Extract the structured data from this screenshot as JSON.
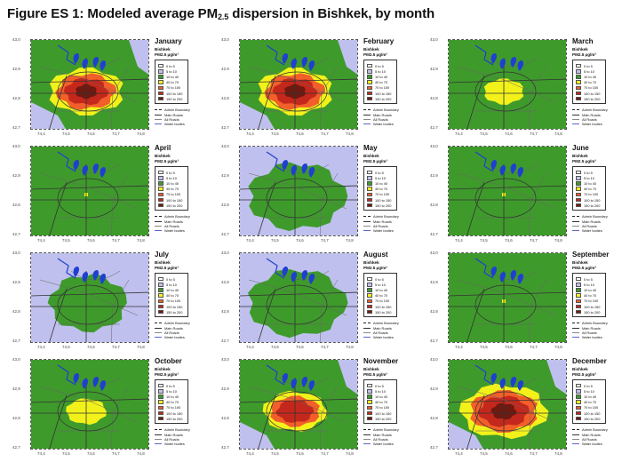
{
  "figure": {
    "title_prefix": "Figure ES 1: Modeled average PM",
    "title_sub": "2.5",
    "title_suffix": " dispersion in Bishkek, by month"
  },
  "axes": {
    "y_ticks": [
      "43,0",
      "42,9",
      "42,8",
      "42,7"
    ],
    "x_ticks": [
      "74,4",
      "74,5",
      "74,6",
      "74,7",
      "74,8"
    ]
  },
  "legend": {
    "city": "Bishkek",
    "classes": [
      {
        "label": "0 to 5",
        "color": "#ffffff"
      },
      {
        "label": "5 to 10",
        "color": "#bfc0ee"
      },
      {
        "label": "10 to 40",
        "color": "#3f9a2c"
      },
      {
        "label": "40 to 70",
        "color": "#f2f21a"
      },
      {
        "label": "70 to 100",
        "color": "#f25f2a"
      },
      {
        "label": "100 to 150",
        "color": "#c4281c"
      },
      {
        "label": "150 to 200",
        "color": "#6e1a10"
      }
    ],
    "lines": [
      "Admin Boundary",
      "Main Roads",
      "All Roads",
      "Water bodies"
    ]
  },
  "panels": [
    {
      "month": "January",
      "unit": "PM2.5 µg/m³",
      "intensity": 5
    },
    {
      "month": "February",
      "unit": "PM2.5 µg/m³",
      "intensity": 5
    },
    {
      "month": "March",
      "unit": "PM2.5 µg/m³",
      "intensity": 2
    },
    {
      "month": "April",
      "unit": "PM2.5 µg/m³",
      "intensity": 1
    },
    {
      "month": "May",
      "unit": "PM2.5 µg/m³",
      "intensity": 0
    },
    {
      "month": "June",
      "unit": "PM2.5 µg/m³",
      "intensity": 1
    },
    {
      "month": "July",
      "unit": "PM2.5 µg/m³",
      "intensity": 0
    },
    {
      "month": "August",
      "unit": "PM2.5 µg/m³",
      "intensity": 0
    },
    {
      "month": "September",
      "unit": "PM2.5 µg/m³",
      "intensity": 1
    },
    {
      "month": "October",
      "unit": "PM2.5 µg/m³",
      "intensity": 2
    },
    {
      "month": "November",
      "unit": "PM2.5 µg/m³",
      "intensity": 4
    },
    {
      "month": "December",
      "unit": "PM2.5 µg/m³",
      "intensity": 6
    }
  ]
}
